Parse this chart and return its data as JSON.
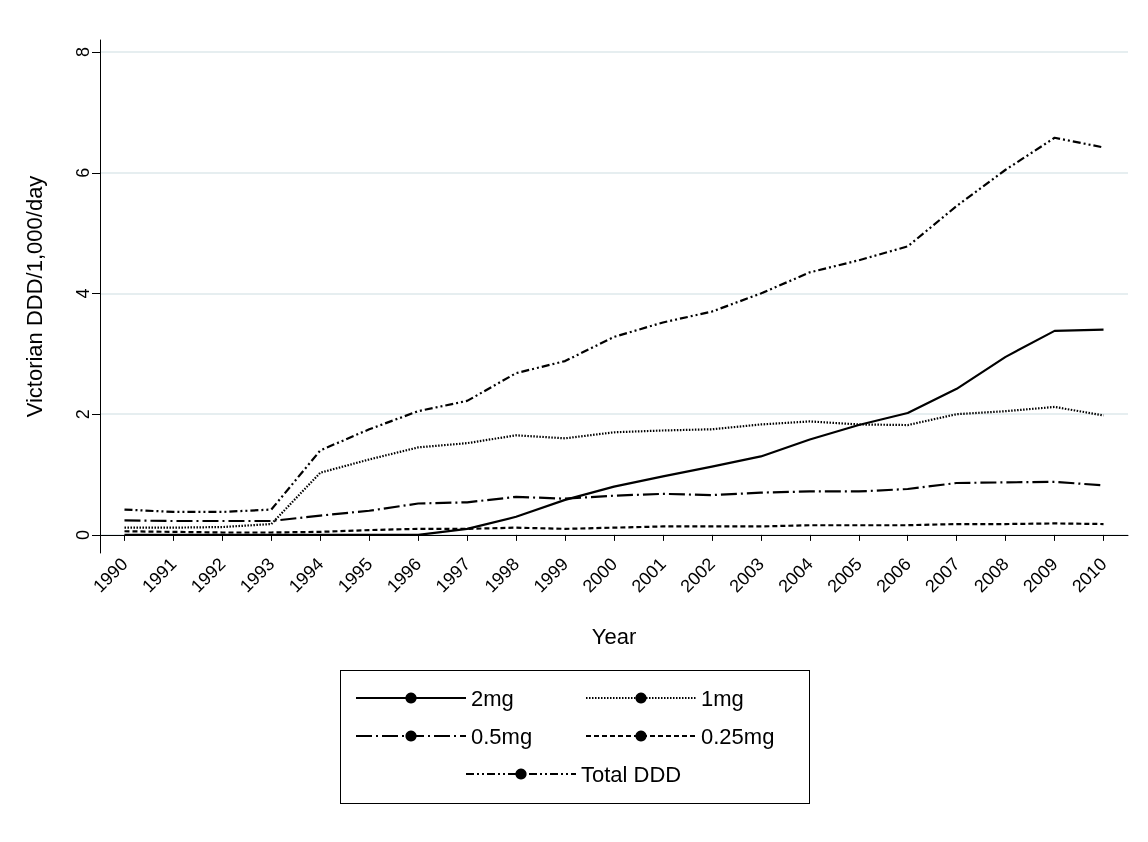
{
  "chart_data": {
    "type": "line",
    "xlabel": "Year",
    "ylabel": "Victorian DDD/1,000/day",
    "categories": [
      "1990",
      "1991",
      "1992",
      "1993",
      "1994",
      "1995",
      "1996",
      "1997",
      "1998",
      "1999",
      "2000",
      "2001",
      "2002",
      "2003",
      "2004",
      "2005",
      "2006",
      "2007",
      "2008",
      "2009",
      "2010"
    ],
    "series": [
      {
        "name": "2mg",
        "color": "#000000",
        "line_style": "solid",
        "values": [
          0,
          0,
          0,
          0,
          0,
          0,
          0,
          0.1,
          0.3,
          0.58,
          0.8,
          0.97,
          1.13,
          1.3,
          1.58,
          1.82,
          2.02,
          2.42,
          2.95,
          3.38,
          3.4
        ]
      },
      {
        "name": "1mg",
        "color": "#000000",
        "line_style": "dotted",
        "values": [
          0.12,
          0.12,
          0.13,
          0.18,
          1.03,
          1.25,
          1.45,
          1.52,
          1.65,
          1.6,
          1.7,
          1.73,
          1.75,
          1.83,
          1.88,
          1.83,
          1.82,
          2.0,
          2.05,
          2.12,
          1.98
        ]
      },
      {
        "name": "0.5mg",
        "color": "#000000",
        "line_style": "dashdot",
        "values": [
          0.24,
          0.23,
          0.23,
          0.23,
          0.32,
          0.4,
          0.52,
          0.54,
          0.63,
          0.6,
          0.65,
          0.68,
          0.66,
          0.7,
          0.72,
          0.72,
          0.76,
          0.86,
          0.87,
          0.88,
          0.82
        ]
      },
      {
        "name": "0.25mg",
        "color": "#000000",
        "line_style": "dashed",
        "values": [
          0.06,
          0.05,
          0.04,
          0.04,
          0.05,
          0.08,
          0.1,
          0.1,
          0.12,
          0.1,
          0.12,
          0.14,
          0.14,
          0.14,
          0.16,
          0.16,
          0.16,
          0.18,
          0.18,
          0.19,
          0.18
        ]
      },
      {
        "name": "Total DDD",
        "color": "#000000",
        "line_style": "dashdotdot",
        "values": [
          0.42,
          0.38,
          0.38,
          0.42,
          1.4,
          1.75,
          2.05,
          2.22,
          2.68,
          2.88,
          3.28,
          3.52,
          3.7,
          4.0,
          4.35,
          4.55,
          4.78,
          5.45,
          6.05,
          6.58,
          6.42
        ]
      }
    ],
    "ylim": [
      -0.3,
      8.2
    ],
    "yticks": [
      0,
      2,
      4,
      6,
      8
    ],
    "grid": "y",
    "legend": "bottom",
    "marker": "none"
  }
}
